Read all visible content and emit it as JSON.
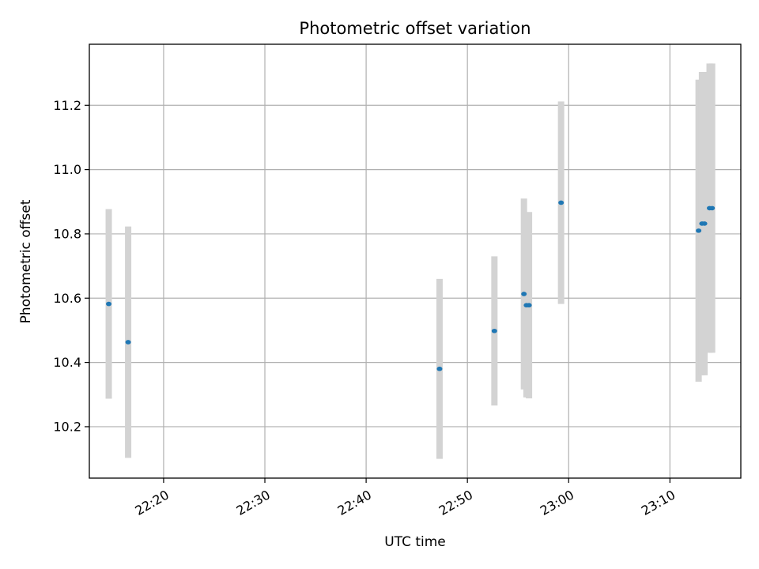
{
  "chart_data": {
    "type": "scatter",
    "title": "Photometric offset variation",
    "xlabel": "UTC time",
    "ylabel": "Photometric offset",
    "xlim": [
      "22:12:40",
      "23:17:00"
    ],
    "ylim": [
      10.04,
      11.39
    ],
    "grid": true,
    "x_ticks": [
      "22:20",
      "22:30",
      "22:40",
      "22:50",
      "23:00",
      "23:10"
    ],
    "y_ticks": [
      "10.2",
      "10.4",
      "10.6",
      "10.8",
      "11.0",
      "11.2"
    ],
    "x_tick_values": [
      "22:20",
      "22:30",
      "22:40",
      "22:50",
      "23:00",
      "23:10"
    ],
    "y_tick_values": [
      10.2,
      10.4,
      10.6,
      10.8,
      11.0,
      11.2
    ],
    "marker_color": "#1f77b4",
    "errorbar_color": "#d3d3d3",
    "points": [
      {
        "x": "22:14:35",
        "y": 10.582,
        "err": 0.295
      },
      {
        "x": "22:16:30",
        "y": 10.463,
        "err": 0.36
      },
      {
        "x": "22:47:15",
        "y": 10.38,
        "err": 0.28
      },
      {
        "x": "22:52:40",
        "y": 10.498,
        "err": 0.232
      },
      {
        "x": "22:55:35",
        "y": 10.613,
        "err": 0.297
      },
      {
        "x": "22:55:50",
        "y": 10.578,
        "err": 0.287
      },
      {
        "x": "22:56:05",
        "y": 10.578,
        "err": 0.29
      },
      {
        "x": "22:59:15",
        "y": 10.897,
        "err": 0.315
      },
      {
        "x": "23:12:50",
        "y": 10.81,
        "err": 0.47
      },
      {
        "x": "23:13:10",
        "y": 10.832,
        "err": 0.472
      },
      {
        "x": "23:13:25",
        "y": 10.832,
        "err": 0.472
      },
      {
        "x": "23:13:55",
        "y": 10.88,
        "err": 0.45
      },
      {
        "x": "23:14:10",
        "y": 10.88,
        "err": 0.45
      }
    ]
  }
}
